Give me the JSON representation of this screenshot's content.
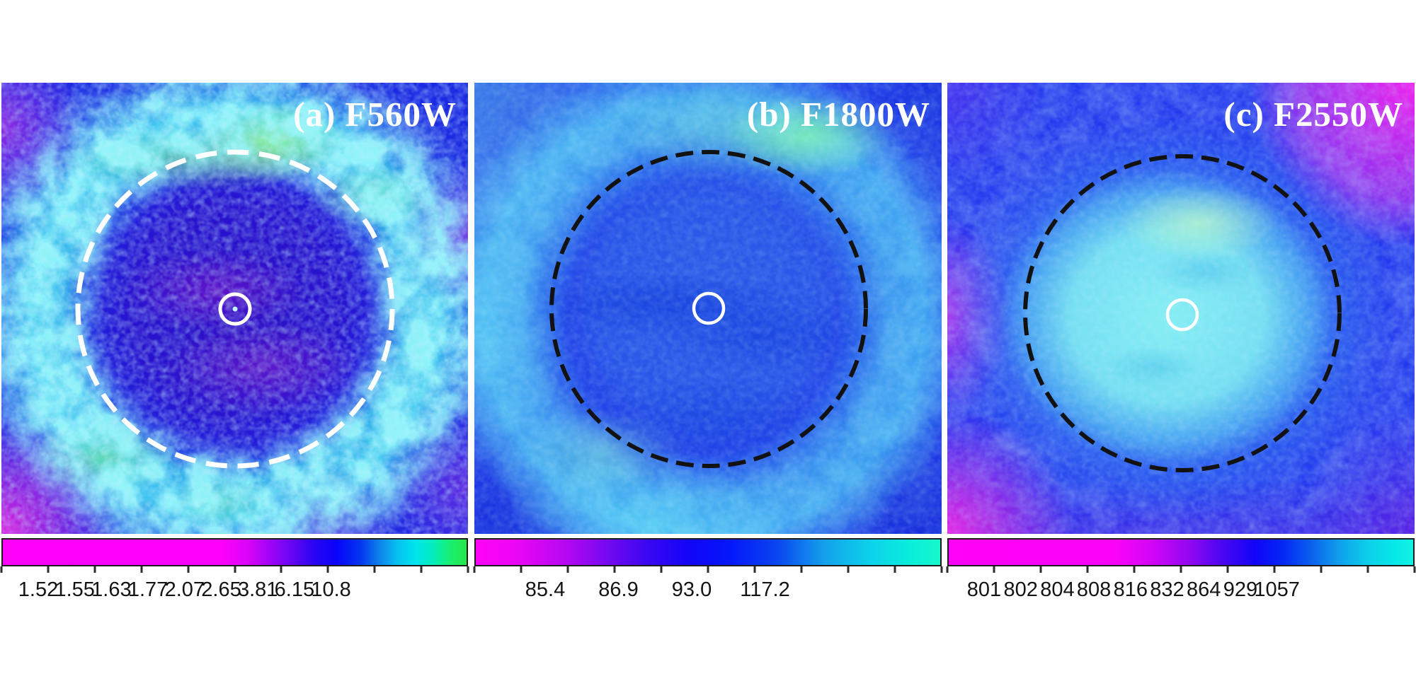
{
  "figure": {
    "panels": [
      {
        "label": "(a) F560W",
        "dashed_circle_color": "#ffffff",
        "center_circle_color": "#ffffff",
        "colorbar_ticks": [
          "1.52",
          "1.55",
          "1.63",
          "1.77",
          "2.07",
          "2.65",
          "3.81",
          "6.15",
          "10.8"
        ]
      },
      {
        "label": "(b) F1800W",
        "dashed_circle_color": "#121212",
        "center_circle_color": "#ffffff",
        "colorbar_ticks": [
          "85.4",
          "86.9",
          "93.0",
          "117.2"
        ]
      },
      {
        "label": "(c) F2550W",
        "dashed_circle_color": "#121212",
        "center_circle_color": "#ffffff",
        "colorbar_ticks": [
          "801",
          "802",
          "804",
          "808",
          "816",
          "832",
          "864",
          "929",
          "1057"
        ]
      }
    ],
    "colors": {
      "background": "#ffffff",
      "tick_label_color": "#141414",
      "panel_label_color": "#ffffff"
    }
  }
}
